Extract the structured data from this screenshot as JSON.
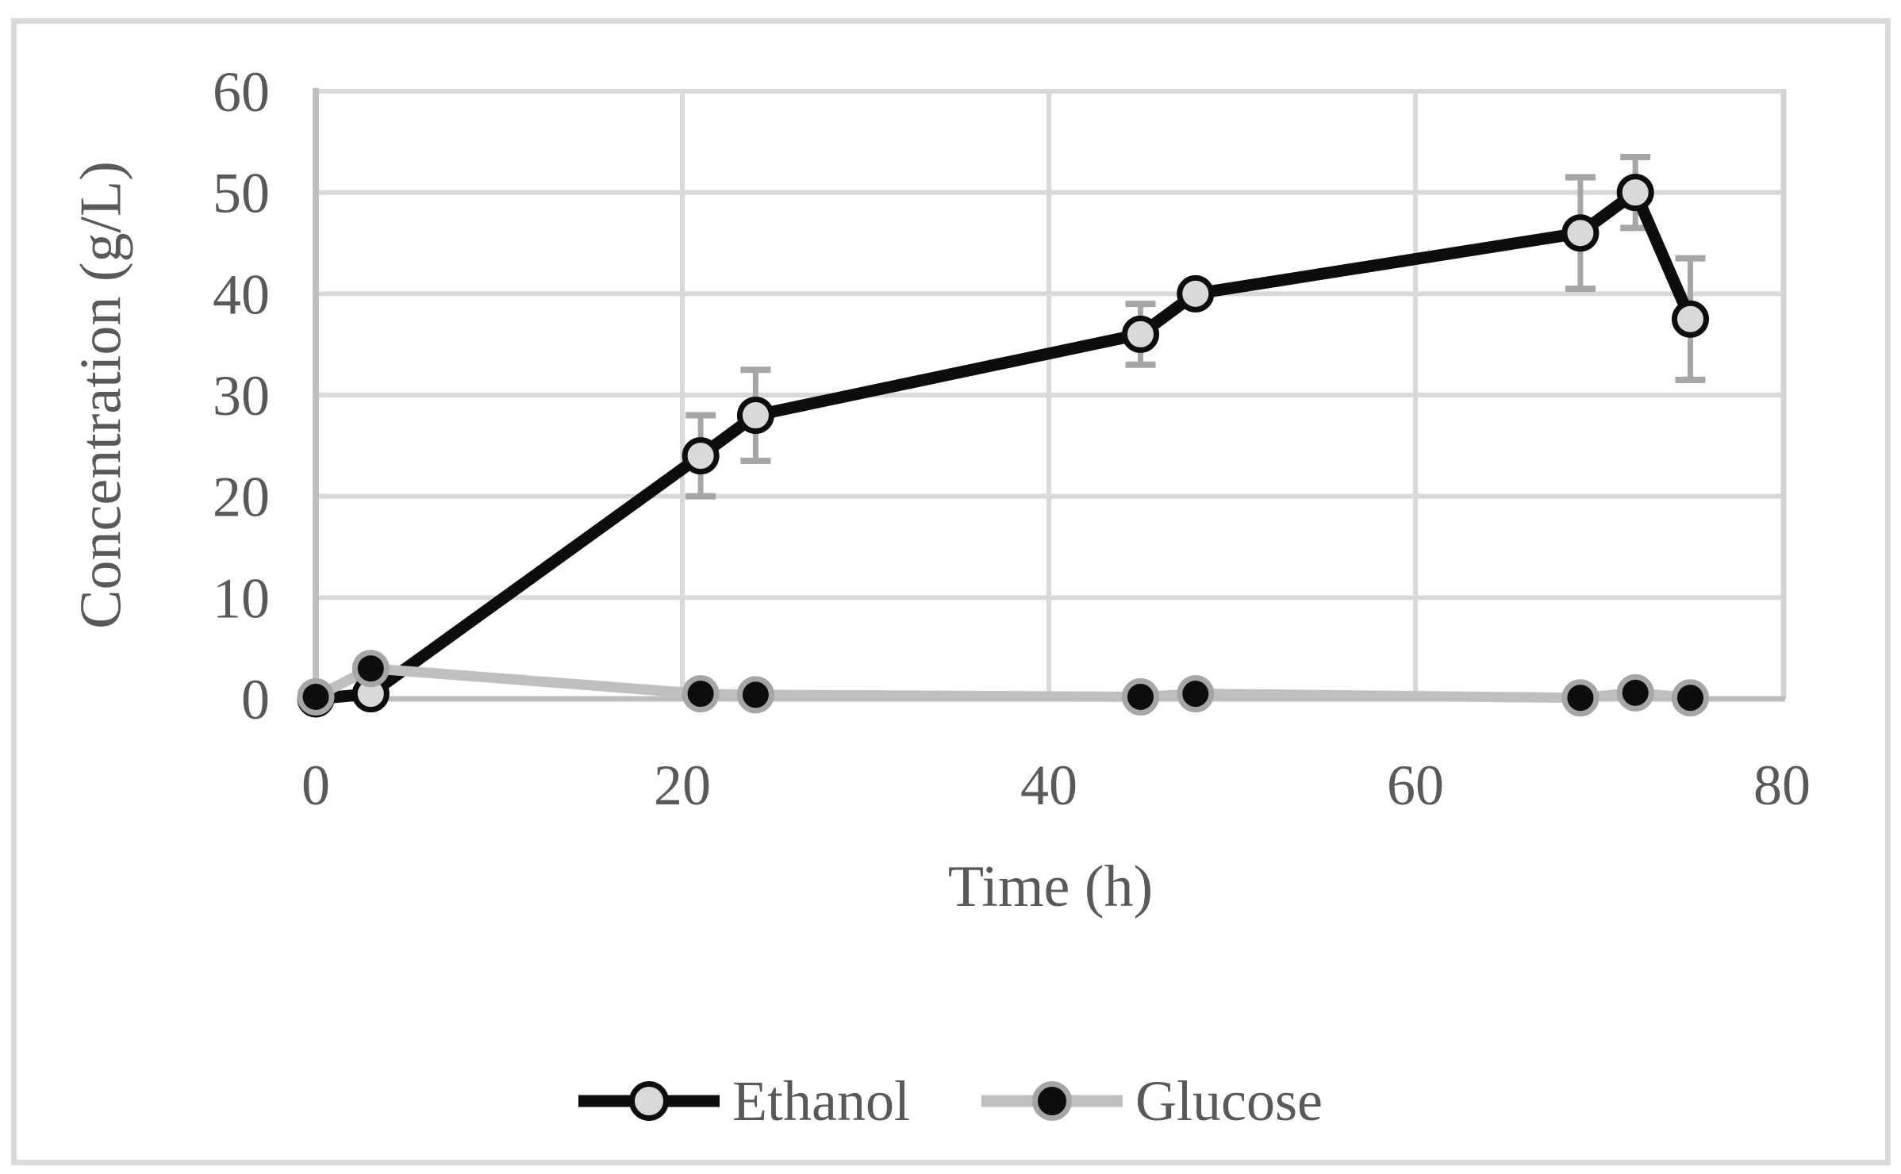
{
  "chart_data": {
    "type": "line",
    "title": "",
    "xlabel": "Time (h)",
    "ylabel": "Concentration (g/L)",
    "x": [
      0,
      3,
      21,
      24,
      45,
      48,
      69,
      72,
      75
    ],
    "series": [
      {
        "name": "Ethanol",
        "values": [
          0,
          0.5,
          24,
          28,
          36,
          40,
          46,
          50,
          37.5
        ],
        "error": [
          0,
          0,
          4,
          4.5,
          3,
          0,
          5.5,
          3.5,
          6
        ],
        "line_color": "#0d0d0d",
        "marker_fill": "#d9d9d9",
        "marker_stroke": "#0d0d0d"
      },
      {
        "name": "Glucose",
        "values": [
          0.2,
          3,
          0.5,
          0.4,
          0.2,
          0.5,
          0.1,
          0.6,
          0.1
        ],
        "error": [
          0,
          0,
          0,
          0,
          0,
          0,
          0,
          0,
          0
        ],
        "line_color": "#bfbfbf",
        "marker_fill": "#0d0d0d",
        "marker_stroke": "#a6a6a6"
      }
    ],
    "x_ticks": [
      0,
      20,
      40,
      60,
      80
    ],
    "y_ticks": [
      0,
      10,
      20,
      30,
      40,
      50,
      60
    ],
    "xlim": [
      0,
      80
    ],
    "ylim": [
      0,
      60
    ],
    "grid": true,
    "legend_position": "bottom",
    "colors": {
      "gridline": "#d9d9d9",
      "axis_line": "#bfbfbf",
      "error_bar": "#a6a6a6",
      "tick_text": "#595959",
      "figure_border": "#d9d9d9",
      "background": "#ffffff"
    }
  }
}
